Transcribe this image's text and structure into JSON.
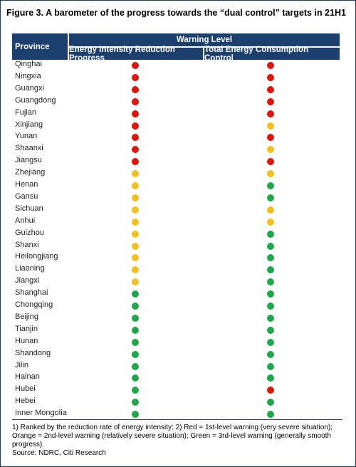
{
  "title": "Figure 3. A barometer of the progress towards the “dual control” targets in 21H1",
  "header": {
    "province": "Province",
    "group": "Warning Level",
    "columns": [
      "Energy Intensity Reduction Progress",
      "Total Energy Consumption Control"
    ]
  },
  "colors": {
    "red": "#e3120b",
    "orange": "#f4c01c",
    "green": "#1ea84c"
  },
  "rows": [
    [
      "Qinghai",
      "red",
      "red"
    ],
    [
      "Ningxia",
      "red",
      "red"
    ],
    [
      "Guangxi",
      "red",
      "red"
    ],
    [
      "Guangdong",
      "red",
      "red"
    ],
    [
      "Fujian",
      "red",
      "red"
    ],
    [
      "Xinjiang",
      "red",
      "orange"
    ],
    [
      "Yunan",
      "red",
      "red"
    ],
    [
      "Shaanxi",
      "red",
      "orange"
    ],
    [
      "Jiangsu",
      "red",
      "red"
    ],
    [
      "Zhejiang",
      "orange",
      "orange"
    ],
    [
      "Henan",
      "orange",
      "green"
    ],
    [
      "Gansu",
      "orange",
      "green"
    ],
    [
      "Sichuan",
      "orange",
      "orange"
    ],
    [
      "Anhui",
      "orange",
      "orange"
    ],
    [
      "Guizhou",
      "orange",
      "green"
    ],
    [
      "Shanxi",
      "orange",
      "green"
    ],
    [
      "Heilongjiang",
      "orange",
      "green"
    ],
    [
      "Liaoning",
      "orange",
      "green"
    ],
    [
      "Jiangxi",
      "orange",
      "green"
    ],
    [
      "Shanghai",
      "green",
      "green"
    ],
    [
      "Chongqing",
      "green",
      "green"
    ],
    [
      "Beijing",
      "green",
      "green"
    ],
    [
      "Tianjin",
      "green",
      "green"
    ],
    [
      "Hunan",
      "green",
      "green"
    ],
    [
      "Shandong",
      "green",
      "green"
    ],
    [
      "Jilin",
      "green",
      "green"
    ],
    [
      "Hainan",
      "green",
      "green"
    ],
    [
      "Hubei",
      "green",
      "red"
    ],
    [
      "Hebei",
      "green",
      "green"
    ],
    [
      "Inner Mongolia",
      "green",
      "green"
    ]
  ],
  "footnote": "1) Ranked by the reduction rate of energy intensity; 2) Red = 1st-level warning (very severe situation); Orange = 2nd-level warning (relatively severe situation); Green = 3rd-level warning (generally smooth progress).",
  "source": "Source: NDRC, Citi Research"
}
